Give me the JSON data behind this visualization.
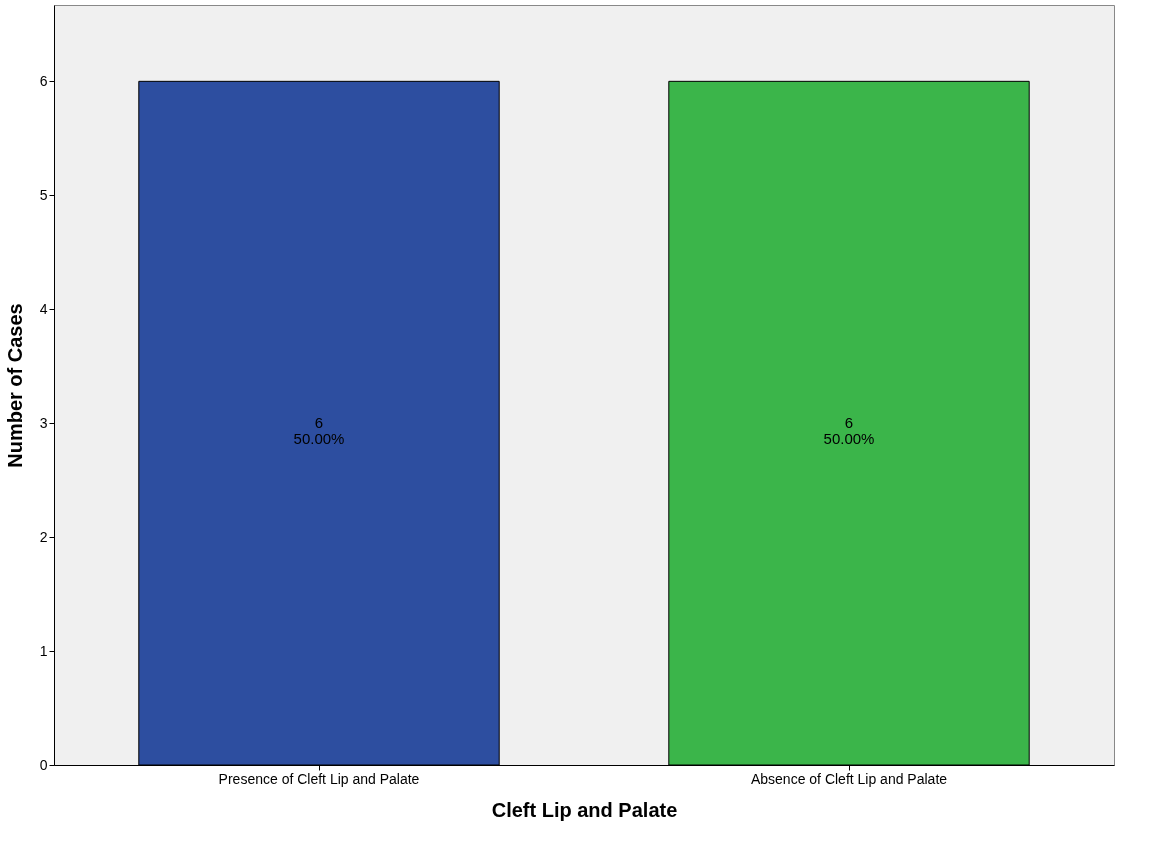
{
  "chart_data": {
    "type": "bar",
    "xlabel": "Cleft Lip and Palate",
    "ylabel": "Number of Cases",
    "categories": [
      "Presence of Cleft Lip and Palate",
      "Absence of Cleft Lip and Palate"
    ],
    "values": [
      6,
      6
    ],
    "colors": [
      "#2d4ea0",
      "#3bb54a"
    ],
    "value_labels": [
      "6\n50.00%",
      "6\n50.00%"
    ],
    "ylim": [
      0,
      6.67
    ],
    "yticks": [
      0,
      1,
      2,
      3,
      4,
      5,
      6
    ],
    "grid": false
  }
}
